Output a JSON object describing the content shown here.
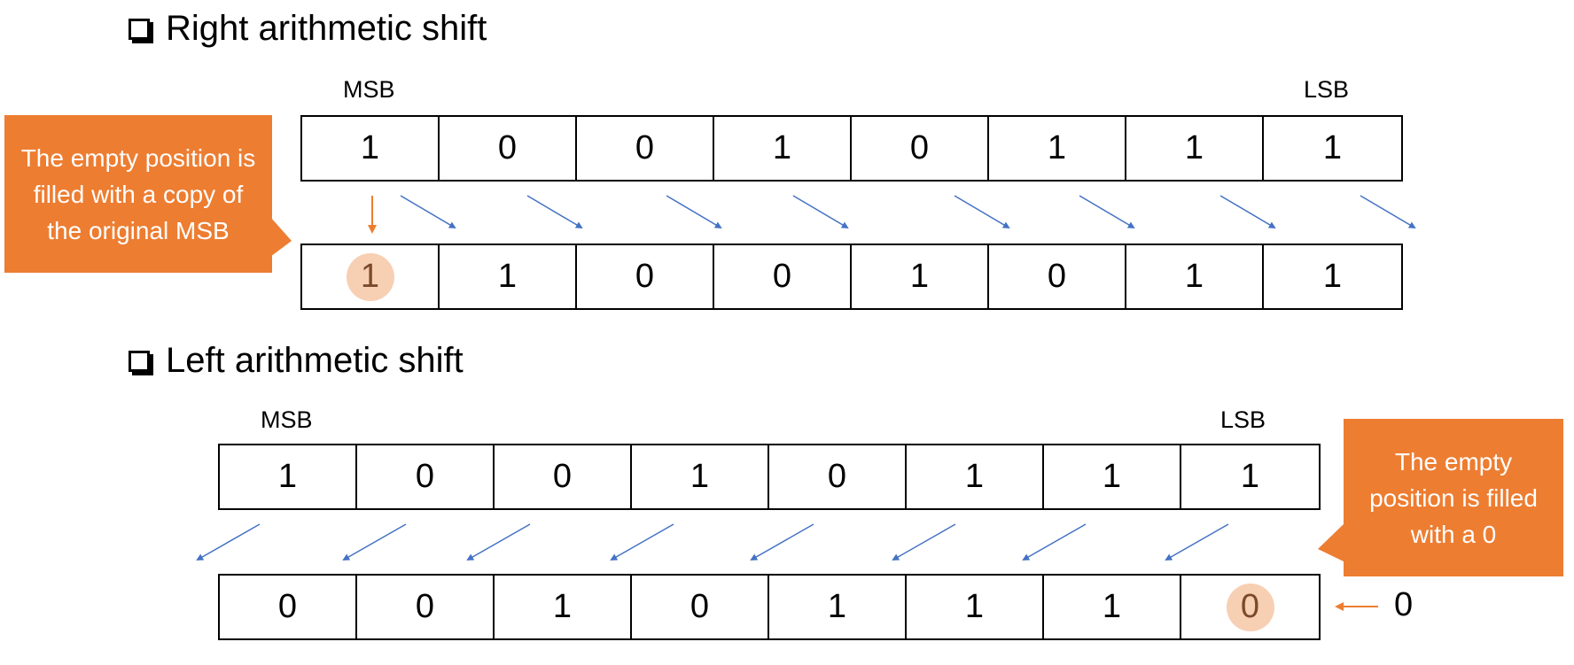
{
  "colors": {
    "accent": "#ed7d31",
    "highlight": "#f7cfb3",
    "arrow": "#4472c4"
  },
  "right_shift": {
    "title": "Right arithmetic shift",
    "msb_label": "MSB",
    "lsb_label": "LSB",
    "original_bits": [
      "1",
      "0",
      "0",
      "1",
      "0",
      "1",
      "1",
      "1"
    ],
    "result_bits": [
      "1",
      "1",
      "0",
      "0",
      "1",
      "0",
      "1",
      "1"
    ],
    "highlighted_result_index": 0,
    "callout": "The empty position is filled with a copy of the original MSB"
  },
  "left_shift": {
    "title": "Left arithmetic shift",
    "msb_label": "MSB",
    "lsb_label": "LSB",
    "original_bits": [
      "1",
      "0",
      "0",
      "1",
      "0",
      "1",
      "1",
      "1"
    ],
    "result_bits": [
      "0",
      "0",
      "1",
      "0",
      "1",
      "1",
      "1",
      "0"
    ],
    "highlighted_result_index": 7,
    "callout": "The empty position is filled with a 0",
    "fill_value": "0"
  }
}
